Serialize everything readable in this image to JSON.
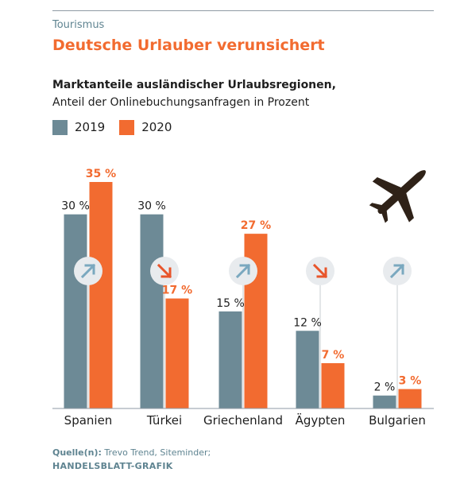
{
  "header": {
    "section": "Tourismus",
    "title": "Deutsche Urlauber verunsichert"
  },
  "chart_data": {
    "type": "bar",
    "title": "Marktanteile ausländischer Urlaubsregionen,",
    "subtitle": "Anteil der Onlinebuchungsanfragen in Prozent",
    "categories": [
      "Spanien",
      "Türkei",
      "Griechenland",
      "Ägypten",
      "Bulgarien"
    ],
    "series": [
      {
        "name": "2019",
        "color": "#6d8a96",
        "values": [
          30,
          30,
          15,
          12,
          2
        ],
        "labels": [
          "30 %",
          "30 %",
          "15 %",
          "12 %",
          "2 %"
        ]
      },
      {
        "name": "2020",
        "color": "#f26b30",
        "values": [
          35,
          17,
          27,
          7,
          3
        ],
        "labels": [
          "35 %",
          "17 %",
          "27 %",
          "7 %",
          "3 %"
        ]
      }
    ],
    "trend": [
      "up",
      "down",
      "up",
      "down",
      "up"
    ],
    "trend_icons": [
      "arrow-up-right-icon",
      "arrow-down-right-icon",
      "arrow-up-right-icon",
      "arrow-down-right-icon",
      "arrow-up-right-icon"
    ],
    "trend_colors": {
      "up": "#7aa8bf",
      "down": "#e8552b"
    },
    "ylim": [
      0,
      35
    ],
    "grid": false,
    "legend": "top-left",
    "decoration_icon": "airplane-icon"
  },
  "footer": {
    "source_label": "Quelle(n):",
    "source_text": " Trevo Trend, Siteminder;",
    "credit": "HANDELSBLATT-GRAFIK"
  }
}
